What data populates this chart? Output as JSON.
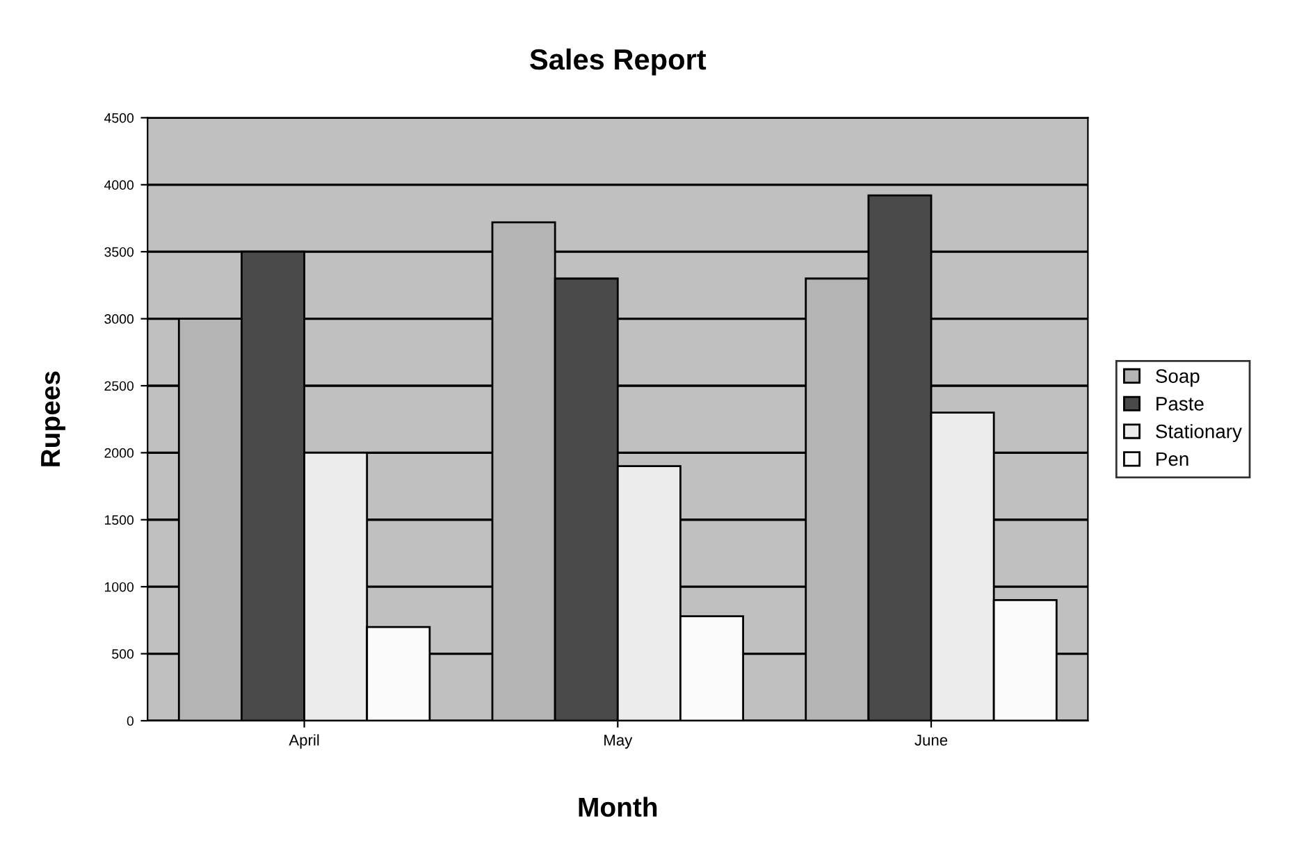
{
  "chart_data": {
    "type": "bar",
    "title": "Sales Report",
    "xlabel": "Month",
    "ylabel": "Rupees",
    "categories": [
      "April",
      "May",
      "June"
    ],
    "series": [
      {
        "name": "Soap",
        "color": "#b4b4b4",
        "values": [
          3000,
          3720,
          3300
        ]
      },
      {
        "name": "Paste",
        "color": "#4a4a4a",
        "values": [
          3500,
          3300,
          3920
        ]
      },
      {
        "name": "Stationary",
        "color": "#ececec",
        "values": [
          2000,
          1900,
          2300
        ]
      },
      {
        "name": "Pen",
        "color": "#fbfbfb",
        "values": [
          700,
          780,
          900
        ]
      }
    ],
    "ylim": [
      0,
      4500
    ],
    "yticks": [
      0,
      500,
      1000,
      1500,
      2000,
      2500,
      3000,
      3500,
      4000,
      4500
    ],
    "grid": "y",
    "legend": "right"
  }
}
